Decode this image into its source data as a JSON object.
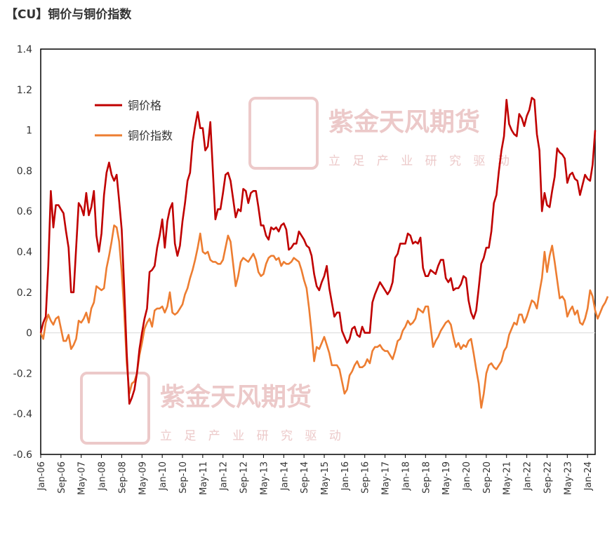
{
  "page_title": "【CU】铜价与铜价指数",
  "watermark": {
    "company": "紫金天风期货",
    "slogan": "立 足 产 业  研 究 驱 动",
    "color": "#ebc4c4"
  },
  "colors": {
    "copper_price": "#c00000",
    "copper_index": "#ed7d31"
  },
  "chart_data": {
    "type": "line",
    "title": "【CU】铜价与铜价指数",
    "xlabel": "",
    "ylabel": "",
    "ylim": [
      -0.6,
      1.4
    ],
    "yticks": [
      "1.4",
      "1.2",
      "1",
      "0.8",
      "0.6",
      "0.4",
      "0.2",
      "0",
      "-0.2",
      "-0.4",
      "-0.6"
    ],
    "xticks": [
      "Jan-06",
      "Sep-06",
      "May-07",
      "Jan-08",
      "Sep-08",
      "May-09",
      "Jan-10",
      "Sep-10",
      "May-11",
      "Jan-12",
      "Sep-12",
      "May-13",
      "Jan-14",
      "Sep-14",
      "May-15",
      "Jan-16",
      "Sep-16",
      "May-17",
      "Jan-18",
      "Sep-18",
      "May-19",
      "Jan-20",
      "Sep-20",
      "May-21",
      "Jan-22",
      "Sep-22",
      "May-23",
      "Jan-24"
    ],
    "x_start": "Jan-06",
    "x_end": "Apr-24",
    "frequency": "monthly",
    "grid": false,
    "legend_position": "upper-left",
    "series": [
      {
        "name": "铜价格",
        "color": "#c00000",
        "values": [
          0.0,
          0.05,
          0.08,
          0.33,
          0.7,
          0.52,
          0.63,
          0.63,
          0.61,
          0.59,
          0.5,
          0.42,
          0.2,
          0.2,
          0.42,
          0.64,
          0.62,
          0.58,
          0.69,
          0.58,
          0.62,
          0.7,
          0.48,
          0.4,
          0.49,
          0.68,
          0.79,
          0.84,
          0.78,
          0.75,
          0.78,
          0.65,
          0.51,
          0.22,
          -0.1,
          -0.35,
          -0.32,
          -0.28,
          -0.2,
          -0.08,
          0.0,
          0.07,
          0.12,
          0.3,
          0.31,
          0.33,
          0.42,
          0.48,
          0.56,
          0.42,
          0.55,
          0.61,
          0.64,
          0.44,
          0.38,
          0.43,
          0.55,
          0.64,
          0.75,
          0.79,
          0.94,
          1.02,
          1.09,
          1.01,
          1.01,
          0.9,
          0.92,
          1.04,
          0.8,
          0.56,
          0.61,
          0.61,
          0.69,
          0.78,
          0.79,
          0.75,
          0.66,
          0.57,
          0.61,
          0.6,
          0.71,
          0.7,
          0.64,
          0.69,
          0.7,
          0.7,
          0.62,
          0.53,
          0.53,
          0.48,
          0.46,
          0.52,
          0.51,
          0.52,
          0.5,
          0.53,
          0.54,
          0.51,
          0.41,
          0.42,
          0.44,
          0.44,
          0.5,
          0.48,
          0.46,
          0.43,
          0.42,
          0.38,
          0.29,
          0.23,
          0.21,
          0.25,
          0.28,
          0.33,
          0.22,
          0.15,
          0.08,
          0.1,
          0.1,
          0.01,
          -0.02,
          -0.05,
          -0.03,
          0.02,
          0.03,
          -0.01,
          -0.02,
          0.03,
          0.0,
          0.0,
          0.0,
          0.15,
          0.19,
          0.22,
          0.25,
          0.23,
          0.21,
          0.19,
          0.21,
          0.25,
          0.37,
          0.39,
          0.44,
          0.44,
          0.44,
          0.49,
          0.48,
          0.44,
          0.45,
          0.44,
          0.47,
          0.32,
          0.28,
          0.28,
          0.31,
          0.3,
          0.29,
          0.33,
          0.36,
          0.36,
          0.27,
          0.25,
          0.27,
          0.21,
          0.22,
          0.22,
          0.24,
          0.28,
          0.27,
          0.16,
          0.1,
          0.07,
          0.11,
          0.22,
          0.34,
          0.37,
          0.42,
          0.42,
          0.5,
          0.64,
          0.68,
          0.8,
          0.9,
          0.97,
          1.15,
          1.03,
          1.0,
          0.98,
          0.97,
          1.08,
          1.06,
          1.02,
          1.07,
          1.1,
          1.16,
          1.15,
          0.98,
          0.9,
          0.6,
          0.69,
          0.63,
          0.62,
          0.7,
          0.77,
          0.91,
          0.89,
          0.88,
          0.86,
          0.74,
          0.78,
          0.79,
          0.76,
          0.75,
          0.68,
          0.73,
          0.78,
          0.76,
          0.75,
          0.83,
          1.0
        ]
      },
      {
        "name": "铜价指数",
        "color": "#ed7d31",
        "values": [
          0.0,
          -0.03,
          0.05,
          0.09,
          0.06,
          0.04,
          0.07,
          0.08,
          0.02,
          -0.04,
          -0.04,
          -0.01,
          -0.08,
          -0.06,
          -0.03,
          0.06,
          0.05,
          0.07,
          0.1,
          0.05,
          0.12,
          0.15,
          0.23,
          0.22,
          0.21,
          0.22,
          0.32,
          0.38,
          0.45,
          0.53,
          0.52,
          0.45,
          0.3,
          0.1,
          -0.15,
          -0.3,
          -0.25,
          -0.24,
          -0.2,
          -0.11,
          -0.05,
          0.02,
          0.05,
          0.07,
          0.03,
          0.11,
          0.12,
          0.12,
          0.13,
          0.1,
          0.13,
          0.2,
          0.1,
          0.09,
          0.1,
          0.12,
          0.14,
          0.19,
          0.22,
          0.27,
          0.31,
          0.36,
          0.42,
          0.49,
          0.4,
          0.39,
          0.4,
          0.36,
          0.35,
          0.35,
          0.34,
          0.34,
          0.36,
          0.42,
          0.48,
          0.45,
          0.34,
          0.23,
          0.28,
          0.35,
          0.37,
          0.36,
          0.35,
          0.37,
          0.39,
          0.36,
          0.3,
          0.28,
          0.29,
          0.34,
          0.37,
          0.38,
          0.38,
          0.36,
          0.37,
          0.33,
          0.35,
          0.34,
          0.34,
          0.35,
          0.37,
          0.36,
          0.35,
          0.31,
          0.26,
          0.22,
          0.12,
          0.0,
          -0.14,
          -0.07,
          -0.08,
          -0.05,
          -0.02,
          -0.06,
          -0.1,
          -0.16,
          -0.16,
          -0.16,
          -0.18,
          -0.24,
          -0.3,
          -0.28,
          -0.21,
          -0.19,
          -0.16,
          -0.14,
          -0.17,
          -0.17,
          -0.16,
          -0.13,
          -0.15,
          -0.09,
          -0.07,
          -0.07,
          -0.06,
          -0.08,
          -0.09,
          -0.09,
          -0.11,
          -0.13,
          -0.09,
          -0.04,
          -0.03,
          0.01,
          0.03,
          0.06,
          0.04,
          0.05,
          0.07,
          0.12,
          0.11,
          0.1,
          0.13,
          0.13,
          0.03,
          -0.07,
          -0.04,
          -0.02,
          0.01,
          0.03,
          0.05,
          0.06,
          0.04,
          -0.02,
          -0.07,
          -0.05,
          -0.08,
          -0.06,
          -0.07,
          -0.04,
          -0.03,
          -0.1,
          -0.18,
          -0.25,
          -0.37,
          -0.3,
          -0.2,
          -0.16,
          -0.15,
          -0.17,
          -0.18,
          -0.16,
          -0.14,
          -0.09,
          -0.07,
          -0.01,
          0.02,
          0.05,
          0.04,
          0.09,
          0.09,
          0.05,
          0.08,
          0.12,
          0.16,
          0.15,
          0.12,
          0.2,
          0.27,
          0.4,
          0.3,
          0.38,
          0.43,
          0.35,
          0.26,
          0.17,
          0.18,
          0.16,
          0.08,
          0.11,
          0.13,
          0.09,
          0.11,
          0.05,
          0.04,
          0.07,
          0.12,
          0.21,
          0.18,
          0.11,
          0.07,
          0.1,
          0.13,
          0.15,
          0.18
        ]
      }
    ]
  }
}
